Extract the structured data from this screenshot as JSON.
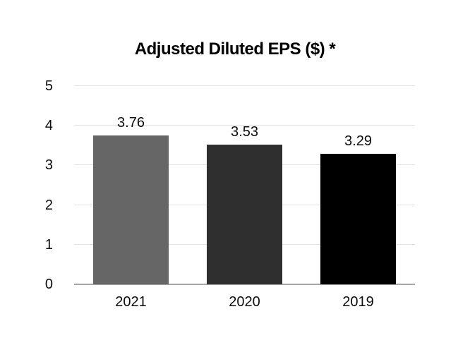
{
  "chart_data": {
    "type": "bar",
    "title": "Adjusted Diluted EPS ($) *",
    "categories": [
      "2021",
      "2020",
      "2019"
    ],
    "values": [
      3.76,
      3.53,
      3.29
    ],
    "value_labels": [
      "3.76",
      "3.53",
      "3.29"
    ],
    "xlabel": "",
    "ylabel": "",
    "ylim": [
      0,
      5
    ],
    "yticks": [
      0,
      1,
      2,
      3,
      4,
      5
    ],
    "ytick_labels": [
      "0",
      "1",
      "2",
      "3",
      "4",
      "5"
    ],
    "grid": "horizontal",
    "legend": "none",
    "bar_colors": [
      "#666667",
      "#2f2f2f",
      "#000000"
    ],
    "gridline_color": "#e1e1e1",
    "axis_line_color": "#a7a7a7",
    "text_color": "#0d0d0d"
  }
}
